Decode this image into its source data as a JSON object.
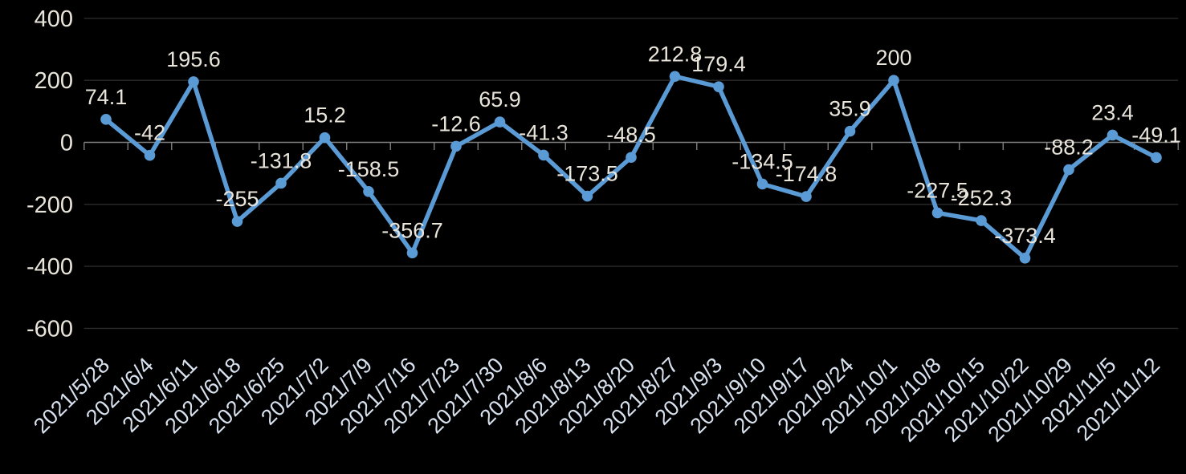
{
  "chart_data": {
    "type": "line",
    "title": "",
    "xlabel": "",
    "ylabel": "",
    "categories": [
      "2021/5/28",
      "2021/6/4",
      "2021/6/11",
      "2021/6/18",
      "2021/6/25",
      "2021/7/2",
      "2021/7/9",
      "2021/7/16",
      "2021/7/23",
      "2021/7/30",
      "2021/8/6",
      "2021/8/13",
      "2021/8/20",
      "2021/8/27",
      "2021/9/3",
      "2021/9/10",
      "2021/9/17",
      "2021/9/24",
      "2021/10/1",
      "2021/10/8",
      "2021/10/15",
      "2021/10/22",
      "2021/10/29",
      "2021/11/5",
      "2021/11/12"
    ],
    "values": [
      74.1,
      -42,
      195.6,
      -255,
      -131.8,
      15.2,
      -158.5,
      -356.7,
      -12.6,
      65.9,
      -41.3,
      -173.5,
      -48.5,
      212.8,
      179.4,
      -134.5,
      -174.8,
      35.9,
      200,
      -227.5,
      -252.3,
      -373.4,
      -88.2,
      23.4,
      -49.1
    ],
    "point_labels": [
      "74.1",
      "-42",
      "195.6",
      "-255",
      "-131.8",
      "15.2",
      "-158.5",
      "-356.7",
      "-12.6",
      "65.9",
      "-41.3",
      "-173.5",
      "-48.5",
      "212.8",
      "179.4",
      "-134.5",
      "-174.8",
      "35.9",
      "200",
      "-227.5",
      "-252.3",
      "-373.4",
      "-88.2",
      "23.4",
      "-49.1"
    ],
    "yticks": [
      400,
      200,
      0,
      -200,
      -400,
      -600
    ],
    "ylim": [
      -600,
      400
    ],
    "grid": true,
    "legend": "none",
    "marker": "circle",
    "colors": {
      "series": "#5B9BD5",
      "background": "#000000",
      "gridline": "#2B2B2B",
      "axis_line": "#7F7F7F",
      "value_label_text": "#EAE5DB",
      "ytick_text": "#EAE5DB",
      "xtick_text": "#D8E2EF"
    }
  }
}
